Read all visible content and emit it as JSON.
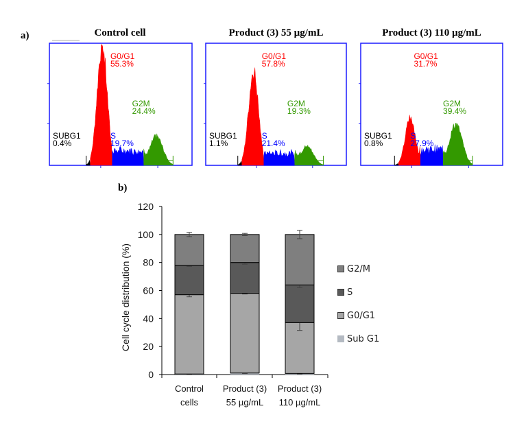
{
  "panel_labels": {
    "a": "a)",
    "b": "b)"
  },
  "chart_data": [
    {
      "type": "histogram",
      "description": "Flow cytometry DNA content histograms",
      "panels": [
        {
          "title": "Control cell",
          "phases": [
            {
              "name": "SUBG1",
              "value": "0.4%",
              "color": "#000000"
            },
            {
              "name": "G0/G1",
              "value": "55.3%",
              "color": "#ff0000"
            },
            {
              "name": "S",
              "value": "19.7%",
              "color": "#0000ff"
            },
            {
              "name": "G2M",
              "value": "24.4%",
              "color": "#339900"
            }
          ],
          "peaks": {
            "g1_pos": 0.37,
            "g1_height": 1.0,
            "g2_pos": 0.75,
            "g2_height": 0.24,
            "s_level": 0.12
          }
        },
        {
          "title": "Product  (3) 55 µg/mL",
          "phases": [
            {
              "name": "SUBG1",
              "value": "1.1%",
              "color": "#000000"
            },
            {
              "name": "G0/G1",
              "value": "57.8%",
              "color": "#ff0000"
            },
            {
              "name": "S",
              "value": "21.4%",
              "color": "#0000ff"
            },
            {
              "name": "G2M",
              "value": "19.3%",
              "color": "#339900"
            }
          ],
          "peaks": {
            "g1_pos": 0.34,
            "g1_height": 0.78,
            "g2_pos": 0.72,
            "g2_height": 0.16,
            "s_level": 0.1
          }
        },
        {
          "title": "Product  (3) 110 µg/mL",
          "phases": [
            {
              "name": "SUBG1",
              "value": "0.8%",
              "color": "#000000"
            },
            {
              "name": "G0/G1",
              "value": "31.7%",
              "color": "#ff0000"
            },
            {
              "name": "S",
              "value": "27.9%",
              "color": "#0000ff"
            },
            {
              "name": "G2M",
              "value": "39.4%",
              "color": "#339900"
            }
          ],
          "peaks": {
            "g1_pos": 0.35,
            "g1_height": 0.4,
            "g2_pos": 0.67,
            "g2_height": 0.34,
            "s_level": 0.13
          }
        }
      ]
    },
    {
      "type": "bar",
      "stacked": true,
      "title": "",
      "xlabel": "",
      "ylabel": "Cell cycle distribution (%)",
      "ylim": [
        0,
        120
      ],
      "yticks": [
        0,
        20,
        40,
        60,
        80,
        100,
        120
      ],
      "categories": [
        [
          "Control",
          "cells"
        ],
        [
          "Product (3)",
          "55 µg/mL"
        ],
        [
          "Product (3)",
          "110 µg/mL"
        ]
      ],
      "series": [
        {
          "name": "Sub G1",
          "color": "#b4bac2",
          "values": [
            0.4,
            1.1,
            0.8
          ],
          "errors": [
            0.2,
            0.3,
            0.3
          ]
        },
        {
          "name": "G0/G1",
          "color": "#a6a6a6",
          "values": [
            56.6,
            56.9,
            36.2
          ],
          "errors": [
            1.5,
            0.5,
            5.5
          ]
        },
        {
          "name": "S",
          "color": "#595959",
          "values": [
            21.0,
            22.0,
            27.0
          ],
          "errors": [
            0.8,
            1.2,
            2.0
          ]
        },
        {
          "name": "G2/M",
          "color": "#7f7f7f",
          "values": [
            22.0,
            20.0,
            36.0
          ],
          "errors": [
            1.5,
            0.8,
            3.0
          ]
        }
      ],
      "legend": {
        "position": "right",
        "order": [
          "G2/M",
          "S",
          "G0/G1",
          "Sub G1"
        ]
      },
      "grid": false
    }
  ]
}
